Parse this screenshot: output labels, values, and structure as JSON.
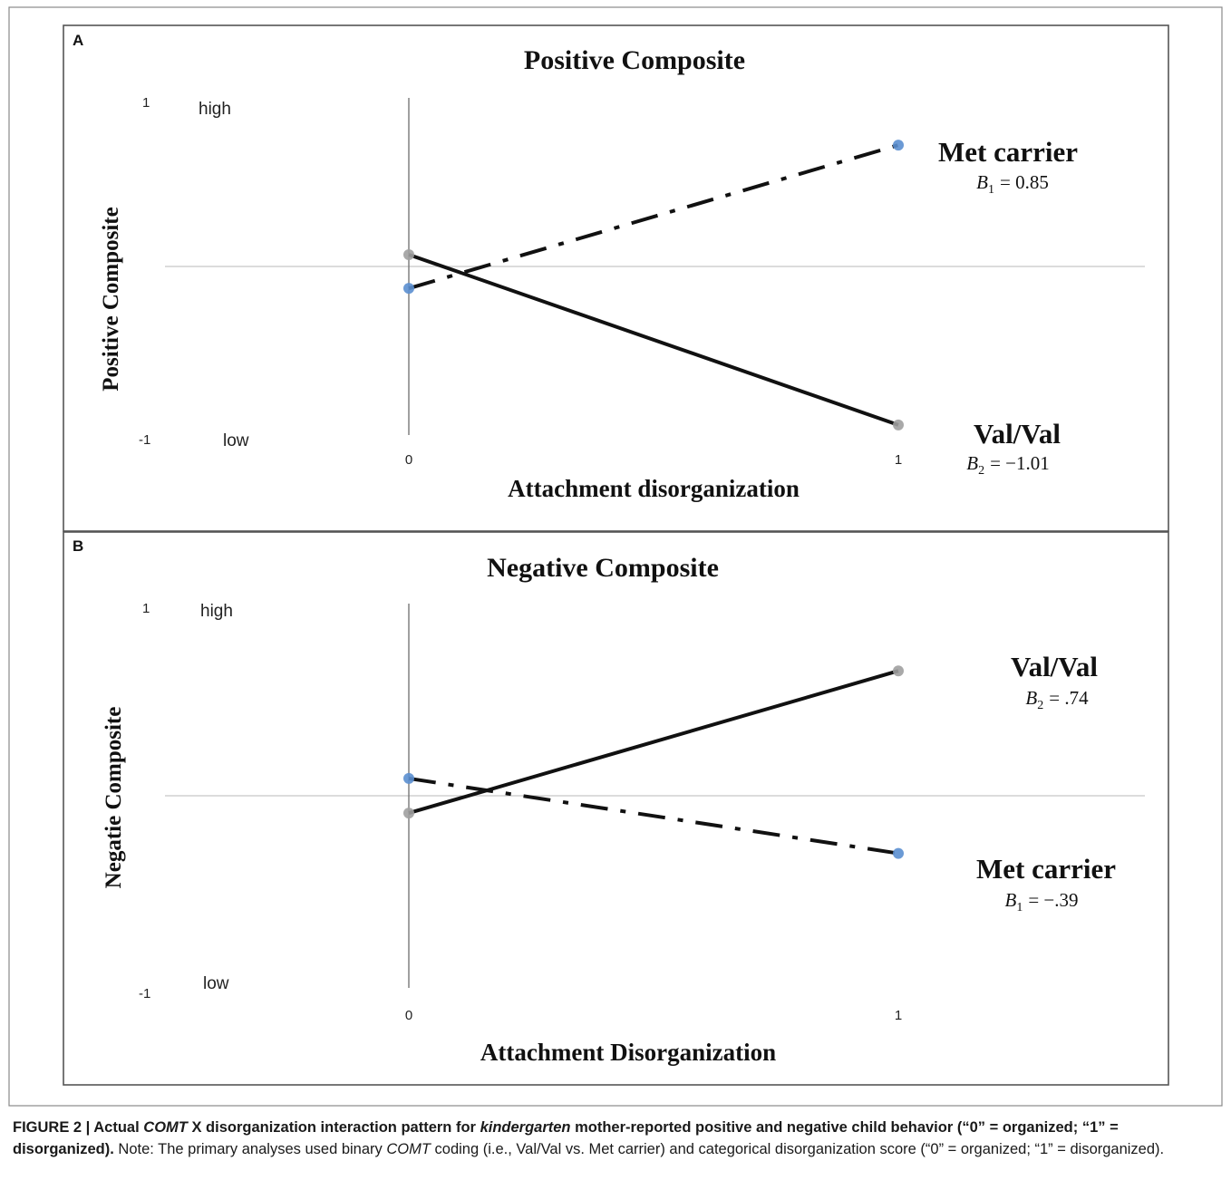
{
  "figure": {
    "caption_parts": [
      {
        "text": "FIGURE 2 | Actual ",
        "b": true,
        "i": false
      },
      {
        "text": "COMT",
        "b": true,
        "i": true
      },
      {
        "text": " X disorganization interaction pattern for ",
        "b": true,
        "i": false
      },
      {
        "text": "kindergarten",
        "b": true,
        "i": true
      },
      {
        "text": " mother-reported positive and negative child behavior (“0” = organized; “1” = disorganized).",
        "b": true,
        "i": false
      },
      {
        "text": " Note: The primary analyses used binary ",
        "b": false,
        "i": false
      },
      {
        "text": "COMT",
        "b": false,
        "i": true
      },
      {
        "text": " coding (i.e., Val/Val vs. Met carrier) and categorical disorganization score (“0” = organized; “1” = disorganized).",
        "b": false,
        "i": false
      }
    ]
  },
  "chart_data": [
    {
      "type": "line",
      "panel_label": "A",
      "title": "Positive Composite",
      "xlabel": "Attachment disorganization",
      "ylabel": "Positive Composite",
      "x_ticks": [
        "0",
        "1"
      ],
      "y_ticks": [
        "1",
        "-1"
      ],
      "y_tick_words": [
        "high",
        "low"
      ],
      "xlim": [
        0,
        1
      ],
      "ylim": [
        -1,
        1
      ],
      "series": [
        {
          "name": "Met carrier",
          "coef_label": "B",
          "coef_sub": "1",
          "coef_value": "= 0.85",
          "dashed": true,
          "marker_color": "#5b8fd0",
          "x": [
            0,
            1
          ],
          "y": [
            -0.13,
            0.72
          ]
        },
        {
          "name": "Val/Val",
          "coef_label": "B",
          "coef_sub": "2",
          "coef_value": "= −1.01",
          "dashed": false,
          "marker_color": "#a0a0a0",
          "x": [
            0,
            1
          ],
          "y": [
            0.07,
            -0.94
          ]
        }
      ]
    },
    {
      "type": "line",
      "panel_label": "B",
      "title": "Negative Composite",
      "xlabel": "Attachment Disorganization",
      "ylabel": "Negatie Composite",
      "x_ticks": [
        "0",
        "1"
      ],
      "y_ticks": [
        "1",
        "-1"
      ],
      "y_tick_words": [
        "high",
        "low"
      ],
      "xlim": [
        0,
        1
      ],
      "ylim": [
        -1,
        1
      ],
      "series": [
        {
          "name": "Val/Val",
          "coef_label": "B",
          "coef_sub": "2",
          "coef_value": "= .74",
          "dashed": false,
          "marker_color": "#a0a0a0",
          "x": [
            0,
            1
          ],
          "y": [
            -0.09,
            0.65
          ]
        },
        {
          "name": "Met carrier",
          "coef_label": "B",
          "coef_sub": "1",
          "coef_value": "= −.39",
          "dashed": true,
          "marker_color": "#5b8fd0",
          "x": [
            0,
            1
          ],
          "y": [
            0.09,
            -0.3
          ]
        }
      ]
    }
  ]
}
